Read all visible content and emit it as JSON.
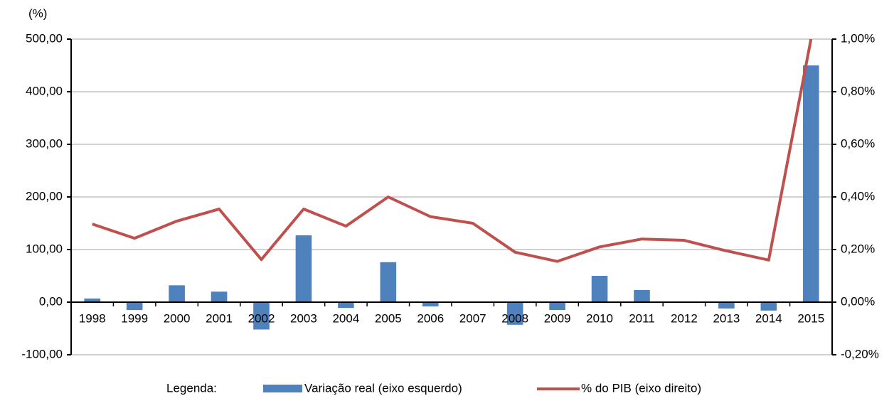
{
  "chart_data": {
    "type": "bar+line",
    "y_axis_label": "(%)",
    "legend_title": "Legenda:",
    "categories": [
      "1998",
      "1999",
      "2000",
      "2001",
      "2002",
      "2003",
      "2004",
      "2005",
      "2006",
      "2007",
      "2008",
      "2009",
      "2010",
      "2011",
      "2012",
      "2013",
      "2014",
      "2015"
    ],
    "series": [
      {
        "name": "Variação real (eixo esquerdo)",
        "type": "bar",
        "color": "#4f81bd",
        "axis": "y",
        "values": [
          7,
          -15,
          32,
          20,
          -52,
          127,
          -11,
          76,
          -8,
          0,
          -43,
          -15,
          50,
          23,
          0,
          -12,
          -16,
          450
        ]
      },
      {
        "name": "% do PIB (eixo direito)",
        "type": "line",
        "color": "#c0504d",
        "axis": "y2",
        "values": [
          0.297,
          0.243,
          0.308,
          0.354,
          0.162,
          0.354,
          0.289,
          0.4,
          0.325,
          0.3,
          0.19,
          0.155,
          0.21,
          0.24,
          0.235,
          0.195,
          0.16,
          1.0
        ]
      }
    ],
    "ylim": [
      -100,
      500
    ],
    "yticks": [
      {
        "value": 500,
        "label": "500,00"
      },
      {
        "value": 400,
        "label": "400,00"
      },
      {
        "value": 300,
        "label": "300,00"
      },
      {
        "value": 200,
        "label": "200,00"
      },
      {
        "value": 100,
        "label": "100,00"
      },
      {
        "value": 0,
        "label": "0,00"
      },
      {
        "value": -100,
        "label": "-100,00"
      }
    ],
    "y2lim": [
      -0.2,
      1.0
    ],
    "y2ticks": [
      {
        "value": 1.0,
        "label": "1,00%"
      },
      {
        "value": 0.8,
        "label": "0,80%"
      },
      {
        "value": 0.6,
        "label": "0,60%"
      },
      {
        "value": 0.4,
        "label": "0,40%"
      },
      {
        "value": 0.2,
        "label": "0,20%"
      },
      {
        "value": 0,
        "label": "0,00%"
      },
      {
        "value": -0.2,
        "label": "-0,20%"
      }
    ],
    "grid": true
  }
}
